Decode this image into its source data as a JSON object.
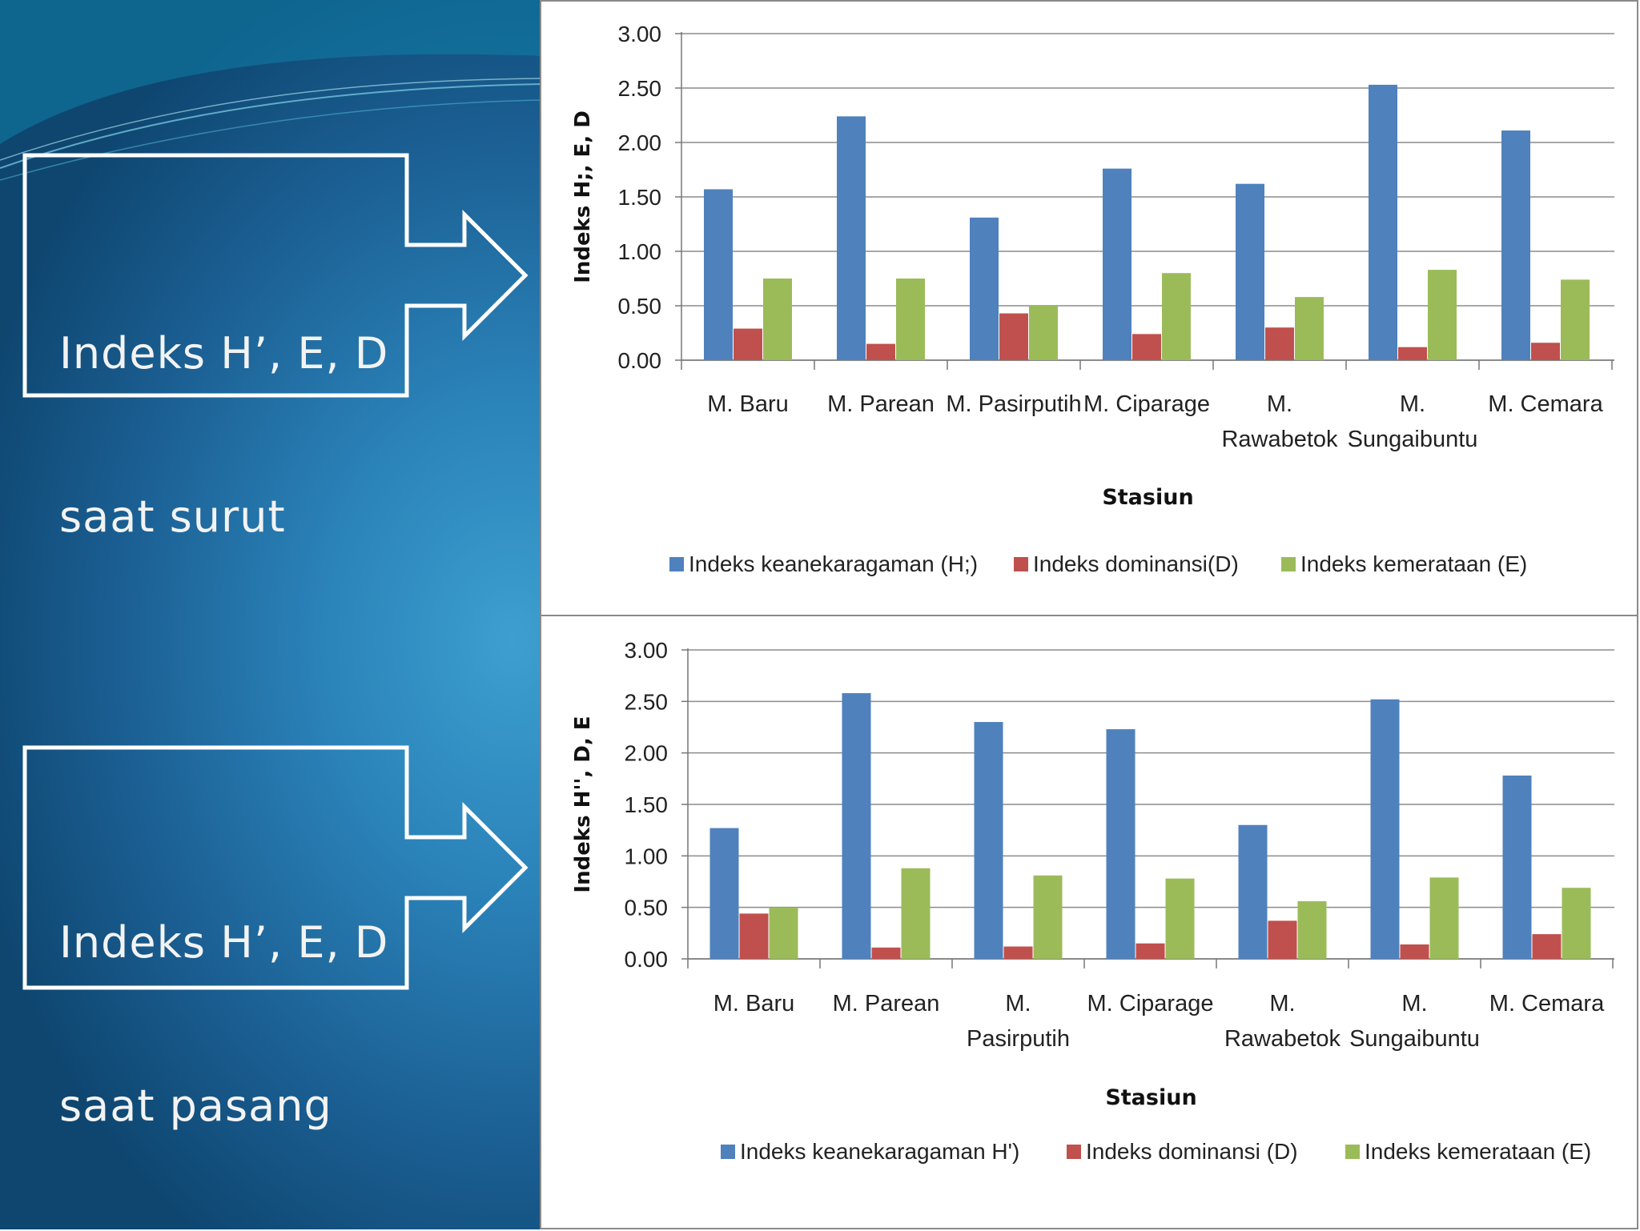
{
  "callouts": [
    {
      "line1": "Indeks H’, E, D",
      "line2": "saat surut"
    },
    {
      "line1": "Indeks H’, E, D",
      "line2": "saat pasang"
    }
  ],
  "colors": {
    "H": "#4f81bd",
    "D": "#c0504d",
    "E": "#9bbb59"
  },
  "chart_data": [
    {
      "type": "bar",
      "title": "",
      "xlabel": "Stasiun",
      "ylabel": "Indeks H;, E, D",
      "ylim": [
        0,
        3
      ],
      "yticks": [
        "0.00",
        "0.50",
        "1.00",
        "1.50",
        "2.00",
        "2.50",
        "3.00"
      ],
      "grid": true,
      "legend_position": "bottom",
      "categories": [
        [
          "M. Baru"
        ],
        [
          "M. Parean"
        ],
        [
          "M. Pasirputih"
        ],
        [
          "M. Ciparage"
        ],
        [
          "M.",
          "Rawabetok"
        ],
        [
          "M.",
          "Sungaibuntu"
        ],
        [
          "M. Cemara"
        ]
      ],
      "series": [
        {
          "name": "Indeks keanekaragaman (H;)",
          "key": "H",
          "values": [
            1.57,
            2.24,
            1.31,
            1.76,
            1.62,
            2.53,
            2.11
          ]
        },
        {
          "name": "Indeks dominansi(D)",
          "key": "D",
          "values": [
            0.29,
            0.15,
            0.43,
            0.24,
            0.3,
            0.12,
            0.16
          ]
        },
        {
          "name": "Indeks kemerataan (E)",
          "key": "E",
          "values": [
            0.75,
            0.75,
            0.5,
            0.8,
            0.58,
            0.83,
            0.74
          ]
        }
      ]
    },
    {
      "type": "bar",
      "title": "",
      "xlabel": "Stasiun",
      "ylabel": "Indeks H'', D, E",
      "ylim": [
        0,
        3
      ],
      "yticks": [
        "0.00",
        "0.50",
        "1.00",
        "1.50",
        "2.00",
        "2.50",
        "3.00"
      ],
      "grid": true,
      "legend_position": "bottom",
      "categories": [
        [
          "M. Baru"
        ],
        [
          "M. Parean"
        ],
        [
          "M.",
          "Pasirputih"
        ],
        [
          "M. Ciparage"
        ],
        [
          "M.",
          "Rawabetok"
        ],
        [
          "M.",
          "Sungaibuntu"
        ],
        [
          "M. Cemara"
        ]
      ],
      "series": [
        {
          "name": "Indeks keanekaragaman H')",
          "key": "H",
          "values": [
            1.27,
            2.58,
            2.3,
            2.23,
            1.3,
            2.52,
            1.78
          ]
        },
        {
          "name": "Indeks dominansi (D)",
          "key": "D",
          "values": [
            0.44,
            0.11,
            0.12,
            0.15,
            0.37,
            0.14,
            0.24
          ]
        },
        {
          "name": "Indeks kemerataan (E)",
          "key": "E",
          "values": [
            0.5,
            0.88,
            0.81,
            0.78,
            0.56,
            0.79,
            0.69
          ]
        }
      ]
    }
  ]
}
